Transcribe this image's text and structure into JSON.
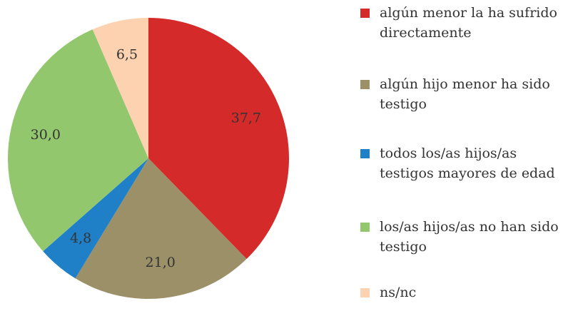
{
  "chart_data": {
    "type": "pie",
    "categories": [
      "algún menor la ha sufrido directamente",
      "algún hijo menor ha sido testigo",
      "todos los/as hijos/as testigos mayores de edad",
      "los/as hijos/as no han sido testigo",
      "ns/nc"
    ],
    "values": [
      37.7,
      21.0,
      4.8,
      30.0,
      6.5
    ],
    "value_labels": [
      "37,7",
      "21,0",
      "4,8",
      "30,0",
      "6,5"
    ],
    "colors": [
      "#d42a2a",
      "#9b9068",
      "#1f80c8",
      "#92c76e",
      "#fdd2b0"
    ],
    "legend": "right"
  }
}
